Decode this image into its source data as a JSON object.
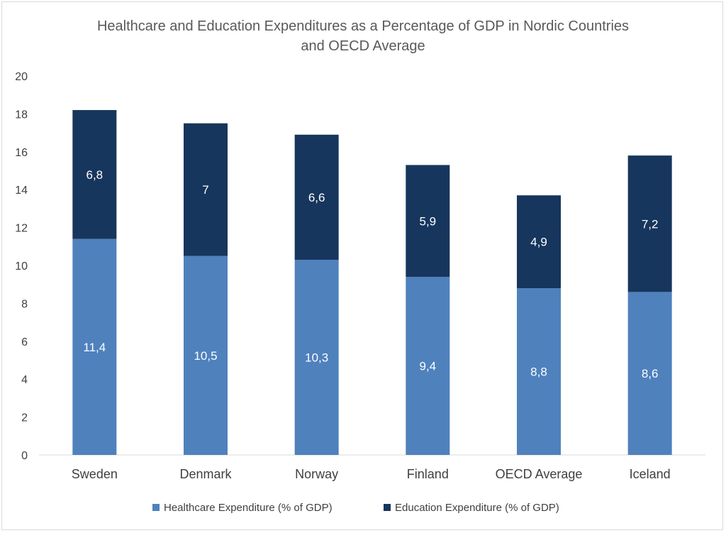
{
  "chart_data": {
    "type": "bar",
    "stacked": true,
    "title": "Healthcare and Education Expenditures as a Percentage of GDP in Nordic Countries and OECD Average",
    "title_lines": [
      "Healthcare and Education Expenditures as a Percentage of GDP in Nordic Countries",
      "and OECD Average"
    ],
    "categories": [
      "Sweden",
      "Denmark",
      "Norway",
      "Finland",
      "OECD Average",
      "Iceland"
    ],
    "series": [
      {
        "name": "Healthcare Expenditure (% of GDP)",
        "color": "#4f81bd",
        "values": [
          11.4,
          10.5,
          10.3,
          9.4,
          8.8,
          8.6
        ],
        "labels": [
          "11,4",
          "10,5",
          "10,3",
          "9,4",
          "8,8",
          "8,6"
        ]
      },
      {
        "name": "Education Expenditure (% of GDP)",
        "color": "#17365d",
        "values": [
          6.8,
          7,
          6.6,
          5.9,
          4.9,
          7.2
        ],
        "labels": [
          "6,8",
          "7",
          "6,6",
          "5,9",
          "4,9",
          "7,2"
        ]
      }
    ],
    "ylim": [
      0,
      20
    ],
    "yticks": [
      "0",
      "2",
      "4",
      "6",
      "8",
      "10",
      "12",
      "14",
      "16",
      "18",
      "20"
    ],
    "xlabel": "",
    "ylabel": "",
    "grid": false,
    "legend_position": "bottom"
  }
}
